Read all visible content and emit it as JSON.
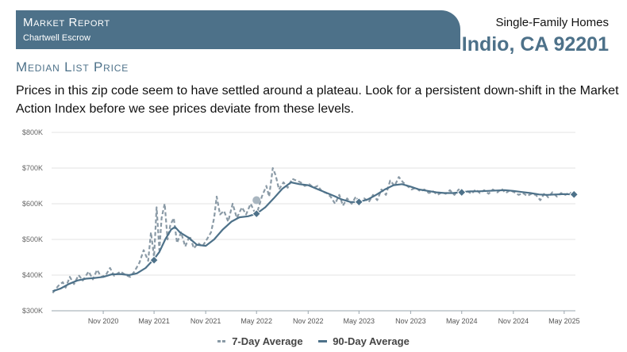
{
  "header": {
    "report_title": "Market Report",
    "company": "Chartwell Escrow",
    "property_type": "Single-Family Homes",
    "location": "Indio, CA 92201"
  },
  "section": {
    "title": "Median List Price",
    "description": "Prices in this zip code seem to have settled around a plateau. Look for a persistent down-shift in the Market Action Index before we see prices deviate from these levels."
  },
  "colors": {
    "accent": "#4d7189",
    "seven_day": "#8a9aa6",
    "grid": "#e3e3e3"
  },
  "chart_data": {
    "type": "line",
    "title": "",
    "xlabel": "",
    "ylabel": "",
    "ylim": [
      300000,
      800000
    ],
    "xlim": [
      "2020-05-01",
      "2025-06-10"
    ],
    "y_ticks": [
      300000,
      400000,
      500000,
      600000,
      700000,
      800000
    ],
    "y_tick_labels": [
      "$300K",
      "$400K",
      "$500K",
      "$600K",
      "$700K",
      "$800K"
    ],
    "x_ticks": [
      "2020-11-01",
      "2021-05-01",
      "2021-11-01",
      "2022-05-01",
      "2022-11-01",
      "2023-05-01",
      "2023-11-01",
      "2024-05-01",
      "2024-11-01",
      "2025-05-01"
    ],
    "x_tick_labels": [
      "Nov 2020",
      "May 2021",
      "Nov 2021",
      "May 2022",
      "Nov 2022",
      "May 2023",
      "Nov 2023",
      "May 2024",
      "Nov 2024",
      "May 2025"
    ],
    "grid": true,
    "legend_position": "bottom",
    "series": [
      {
        "name": "7-Day Average",
        "style": "dashed",
        "points": [
          [
            "2020-05-05",
            350000
          ],
          [
            "2020-05-25",
            370000
          ],
          [
            "2020-06-10",
            380000
          ],
          [
            "2020-06-20",
            365000
          ],
          [
            "2020-07-05",
            395000
          ],
          [
            "2020-07-20",
            375000
          ],
          [
            "2020-08-05",
            400000
          ],
          [
            "2020-08-20",
            385000
          ],
          [
            "2020-09-10",
            410000
          ],
          [
            "2020-09-25",
            388000
          ],
          [
            "2020-10-10",
            415000
          ],
          [
            "2020-10-25",
            395000
          ],
          [
            "2020-11-10",
            400000
          ],
          [
            "2020-11-25",
            420000
          ],
          [
            "2020-12-10",
            398000
          ],
          [
            "2021-01-01",
            410000
          ],
          [
            "2021-01-20",
            400000
          ],
          [
            "2021-02-05",
            395000
          ],
          [
            "2021-02-20",
            410000
          ],
          [
            "2021-03-10",
            435000
          ],
          [
            "2021-03-25",
            470000
          ],
          [
            "2021-04-10",
            440000
          ],
          [
            "2021-04-20",
            520000
          ],
          [
            "2021-05-01",
            450000
          ],
          [
            "2021-05-10",
            590000
          ],
          [
            "2021-05-20",
            470000
          ],
          [
            "2021-05-28",
            560000
          ],
          [
            "2021-06-08",
            600000
          ],
          [
            "2021-06-18",
            500000
          ],
          [
            "2021-06-28",
            540000
          ],
          [
            "2021-07-10",
            560000
          ],
          [
            "2021-07-22",
            490000
          ],
          [
            "2021-08-05",
            520000
          ],
          [
            "2021-08-20",
            480000
          ],
          [
            "2021-09-05",
            510000
          ],
          [
            "2021-09-20",
            475000
          ],
          [
            "2021-10-05",
            490000
          ],
          [
            "2021-10-20",
            480000
          ],
          [
            "2021-11-05",
            500000
          ],
          [
            "2021-11-20",
            520000
          ],
          [
            "2021-12-01",
            560000
          ],
          [
            "2021-12-10",
            620000
          ],
          [
            "2021-12-22",
            570000
          ],
          [
            "2022-01-05",
            580000
          ],
          [
            "2022-01-20",
            550000
          ],
          [
            "2022-02-05",
            600000
          ],
          [
            "2022-02-20",
            560000
          ],
          [
            "2022-03-10",
            590000
          ],
          [
            "2022-03-25",
            570000
          ],
          [
            "2022-04-10",
            600000
          ],
          [
            "2022-04-25",
            575000
          ],
          [
            "2022-05-05",
            580000
          ],
          [
            "2022-05-20",
            620000
          ],
          [
            "2022-06-05",
            650000
          ],
          [
            "2022-06-15",
            620000
          ],
          [
            "2022-06-28",
            700000
          ],
          [
            "2022-07-08",
            680000
          ],
          [
            "2022-07-20",
            640000
          ],
          [
            "2022-08-05",
            660000
          ],
          [
            "2022-08-20",
            645000
          ],
          [
            "2022-09-05",
            670000
          ],
          [
            "2022-09-20",
            665000
          ],
          [
            "2022-10-05",
            660000
          ],
          [
            "2022-10-20",
            650000
          ],
          [
            "2022-11-05",
            655000
          ],
          [
            "2022-11-20",
            645000
          ],
          [
            "2022-12-05",
            650000
          ],
          [
            "2022-12-20",
            635000
          ],
          [
            "2023-01-05",
            630000
          ],
          [
            "2023-01-20",
            620000
          ],
          [
            "2023-02-05",
            600000
          ],
          [
            "2023-02-20",
            625000
          ],
          [
            "2023-03-05",
            595000
          ],
          [
            "2023-03-20",
            615000
          ],
          [
            "2023-04-05",
            600000
          ],
          [
            "2023-04-20",
            620000
          ],
          [
            "2023-05-05",
            600000
          ],
          [
            "2023-05-20",
            615000
          ],
          [
            "2023-06-05",
            605000
          ],
          [
            "2023-06-20",
            625000
          ],
          [
            "2023-07-05",
            610000
          ],
          [
            "2023-07-20",
            640000
          ],
          [
            "2023-08-05",
            625000
          ],
          [
            "2023-08-20",
            665000
          ],
          [
            "2023-09-05",
            650000
          ],
          [
            "2023-09-20",
            675000
          ],
          [
            "2023-10-05",
            660000
          ],
          [
            "2023-10-20",
            650000
          ],
          [
            "2023-11-05",
            640000
          ],
          [
            "2023-11-20",
            645000
          ],
          [
            "2023-12-05",
            635000
          ],
          [
            "2023-12-20",
            640000
          ],
          [
            "2024-01-05",
            630000
          ],
          [
            "2024-01-20",
            635000
          ],
          [
            "2024-02-05",
            625000
          ],
          [
            "2024-02-20",
            632000
          ],
          [
            "2024-03-05",
            628000
          ],
          [
            "2024-03-20",
            638000
          ],
          [
            "2024-04-05",
            625000
          ],
          [
            "2024-04-20",
            640000
          ],
          [
            "2024-05-05",
            630000
          ],
          [
            "2024-05-20",
            636000
          ],
          [
            "2024-06-05",
            628000
          ],
          [
            "2024-06-20",
            640000
          ],
          [
            "2024-07-05",
            630000
          ],
          [
            "2024-07-20",
            638000
          ],
          [
            "2024-08-05",
            628000
          ],
          [
            "2024-08-20",
            640000
          ],
          [
            "2024-09-05",
            632000
          ],
          [
            "2024-09-20",
            642000
          ],
          [
            "2024-10-05",
            630000
          ],
          [
            "2024-10-20",
            638000
          ],
          [
            "2024-11-05",
            632000
          ],
          [
            "2024-11-20",
            625000
          ],
          [
            "2024-12-05",
            630000
          ],
          [
            "2024-12-20",
            622000
          ],
          [
            "2025-01-05",
            628000
          ],
          [
            "2025-01-20",
            625000
          ],
          [
            "2025-02-05",
            610000
          ],
          [
            "2025-02-20",
            630000
          ],
          [
            "2025-03-05",
            618000
          ],
          [
            "2025-03-20",
            632000
          ],
          [
            "2025-04-05",
            620000
          ],
          [
            "2025-04-20",
            630000
          ],
          [
            "2025-05-05",
            625000
          ],
          [
            "2025-05-20",
            632000
          ],
          [
            "2025-06-05",
            625000
          ]
        ]
      },
      {
        "name": "90-Day Average",
        "style": "solid",
        "points": [
          [
            "2020-05-05",
            355000
          ],
          [
            "2020-06-01",
            362000
          ],
          [
            "2020-07-01",
            375000
          ],
          [
            "2020-08-01",
            385000
          ],
          [
            "2020-09-01",
            390000
          ],
          [
            "2020-10-01",
            392000
          ],
          [
            "2020-11-01",
            395000
          ],
          [
            "2020-12-01",
            402000
          ],
          [
            "2021-01-01",
            403000
          ],
          [
            "2021-02-01",
            400000
          ],
          [
            "2021-03-01",
            405000
          ],
          [
            "2021-04-01",
            420000
          ],
          [
            "2021-05-01",
            445000
          ],
          [
            "2021-05-20",
            465000
          ],
          [
            "2021-06-10",
            500000
          ],
          [
            "2021-07-01",
            528000
          ],
          [
            "2021-07-15",
            535000
          ],
          [
            "2021-08-01",
            520000
          ],
          [
            "2021-09-01",
            505000
          ],
          [
            "2021-10-01",
            485000
          ],
          [
            "2021-11-01",
            482000
          ],
          [
            "2021-12-01",
            500000
          ],
          [
            "2022-01-01",
            528000
          ],
          [
            "2022-02-01",
            550000
          ],
          [
            "2022-03-01",
            562000
          ],
          [
            "2022-04-01",
            565000
          ],
          [
            "2022-05-01",
            572000
          ],
          [
            "2022-06-01",
            590000
          ],
          [
            "2022-07-01",
            615000
          ],
          [
            "2022-08-01",
            642000
          ],
          [
            "2022-09-01",
            660000
          ],
          [
            "2022-10-01",
            655000
          ],
          [
            "2022-11-01",
            652000
          ],
          [
            "2022-12-01",
            642000
          ],
          [
            "2023-01-01",
            632000
          ],
          [
            "2023-02-01",
            622000
          ],
          [
            "2023-03-01",
            612000
          ],
          [
            "2023-04-01",
            605000
          ],
          [
            "2023-05-01",
            605000
          ],
          [
            "2023-06-01",
            612000
          ],
          [
            "2023-07-01",
            625000
          ],
          [
            "2023-08-01",
            640000
          ],
          [
            "2023-09-01",
            652000
          ],
          [
            "2023-10-01",
            655000
          ],
          [
            "2023-11-01",
            648000
          ],
          [
            "2023-12-01",
            640000
          ],
          [
            "2024-01-01",
            636000
          ],
          [
            "2024-02-01",
            632000
          ],
          [
            "2024-03-01",
            630000
          ],
          [
            "2024-04-01",
            630000
          ],
          [
            "2024-05-01",
            633000
          ],
          [
            "2024-06-01",
            635000
          ],
          [
            "2024-07-01",
            635000
          ],
          [
            "2024-08-01",
            636000
          ],
          [
            "2024-09-01",
            637000
          ],
          [
            "2024-10-01",
            638000
          ],
          [
            "2024-11-01",
            636000
          ],
          [
            "2024-12-01",
            633000
          ],
          [
            "2025-01-01",
            630000
          ],
          [
            "2025-02-01",
            626000
          ],
          [
            "2025-03-01",
            625000
          ],
          [
            "2025-04-01",
            626000
          ],
          [
            "2025-05-01",
            627000
          ],
          [
            "2025-06-05",
            626000
          ]
        ]
      }
    ],
    "annotations": [
      {
        "series": "90-Day Average",
        "marker": "diamond",
        "x": "2021-05-01",
        "y": 442000
      },
      {
        "series": "90-Day Average",
        "marker": "diamond",
        "x": "2022-05-01",
        "y": 572000
      },
      {
        "series": "7-Day Average",
        "marker": "circle",
        "x": "2022-05-01",
        "y": 610000
      },
      {
        "series": "90-Day Average",
        "marker": "diamond",
        "x": "2023-05-01",
        "y": 605000
      },
      {
        "series": "90-Day Average",
        "marker": "diamond",
        "x": "2024-05-01",
        "y": 632000
      },
      {
        "series": "90-Day Average",
        "marker": "diamond",
        "x": "2025-06-05",
        "y": 626000
      }
    ]
  }
}
